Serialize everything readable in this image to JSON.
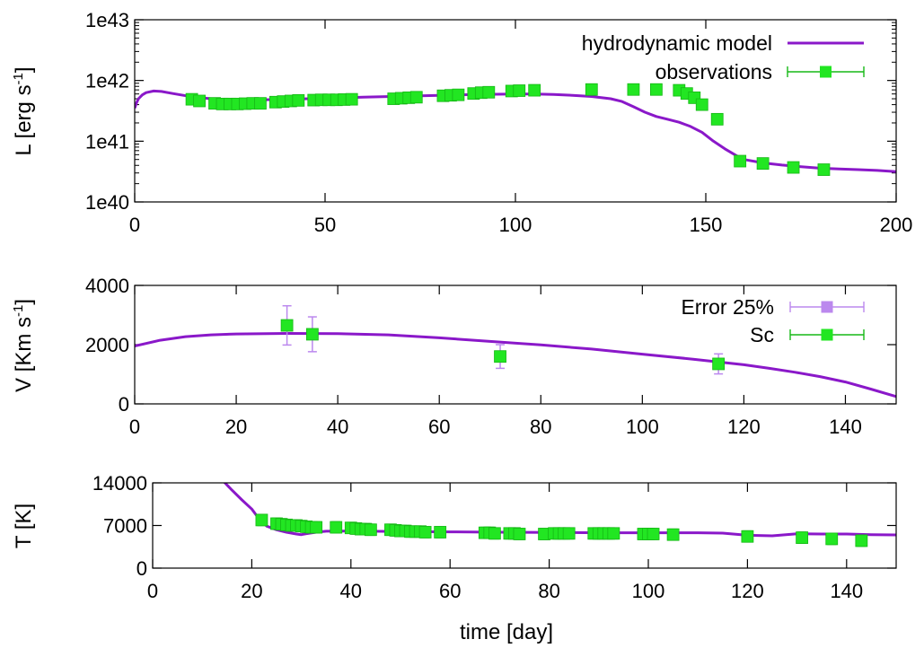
{
  "colors": {
    "model": "#8a18c9",
    "obs": "#22e622",
    "obs_edge": "#16b816",
    "err25": "#bb88ee"
  },
  "chart_data": [
    {
      "type": "line",
      "xlabel": "",
      "ylabel": "L [erg s",
      "ylabel_sup": "-1",
      "ylabel_close": "]",
      "xlim": [
        0,
        200
      ],
      "ylim": [
        1e+40,
        1e+43
      ],
      "yscale": "log",
      "xticks": [
        0,
        50,
        100,
        150,
        200
      ],
      "xtick_labels": [
        "0",
        "50",
        "100",
        "150",
        "200"
      ],
      "yticks": [
        1e+40,
        1e+41,
        1e+42,
        1e+43
      ],
      "ytick_labels": [
        "1e40",
        "1e41",
        "1e42",
        "1e43"
      ],
      "legend": "top-right",
      "series": [
        {
          "name": "hydrodynamic model",
          "style": "line",
          "x": [
            0,
            0.5,
            1,
            2,
            3,
            5,
            7,
            10,
            15,
            20,
            25,
            30,
            40,
            50,
            60,
            70,
            80,
            90,
            100,
            105,
            110,
            115,
            120,
            125,
            128,
            131,
            134,
            137,
            140,
            143,
            146,
            149,
            152,
            155,
            158,
            160,
            165,
            170,
            175,
            180,
            185,
            190,
            195,
            200
          ],
          "y": [
            3.5e+41,
            4.3e+41,
            5e+41,
            5.8e+41,
            6.3e+41,
            6.7e+41,
            6.6e+41,
            6.1e+41,
            5.4e+41,
            5e+41,
            4.8e+41,
            4.75e+41,
            4.9e+41,
            5.1e+41,
            5.3e+41,
            5.5e+41,
            5.7e+41,
            5.9e+41,
            6e+41,
            6e+41,
            5.9e+41,
            5.7e+41,
            5.45e+41,
            5e+41,
            4.5e+41,
            3.7e+41,
            3e+41,
            2.55e+41,
            2.3e+41,
            2.05e+41,
            1.75e+41,
            1.4e+41,
            1e+41,
            7.5e+40,
            5.8e+40,
            5e+40,
            4.4e+40,
            4.05e+40,
            3.8e+40,
            3.6e+40,
            3.5e+40,
            3.4e+40,
            3.3e+40,
            3.15e+40
          ]
        },
        {
          "name": "observations",
          "style": "points",
          "x": [
            15,
            17,
            21,
            23,
            25,
            27,
            29,
            31,
            33,
            37,
            39,
            41,
            43,
            47,
            49,
            51,
            53,
            55,
            57,
            68,
            70,
            72,
            74,
            81,
            83,
            85,
            89,
            91,
            93,
            99,
            101,
            105,
            120,
            131,
            137,
            143,
            145,
            147,
            149,
            153,
            159,
            165,
            173,
            181
          ],
          "y": [
            4.9e+41,
            4.6e+41,
            4.2e+41,
            4.1e+41,
            4.1e+41,
            4.1e+41,
            4.15e+41,
            4.2e+41,
            4.2e+41,
            4.4e+41,
            4.5e+41,
            4.6e+41,
            4.7e+41,
            4.75e+41,
            4.8e+41,
            4.8e+41,
            4.8e+41,
            4.85e+41,
            4.9e+41,
            5e+41,
            5.1e+41,
            5.2e+41,
            5.3e+41,
            5.6e+41,
            5.7e+41,
            5.8e+41,
            6.1e+41,
            6.3e+41,
            6.4e+41,
            6.7e+41,
            6.8e+41,
            6.9e+41,
            7.1e+41,
            7.1e+41,
            7.1e+41,
            6.9e+41,
            6.1e+41,
            5.2e+41,
            4e+41,
            2.3e+41,
            4.7e+40,
            4.3e+40,
            3.7e+40,
            3.4e+40
          ],
          "yerr": 0
        }
      ]
    },
    {
      "type": "line",
      "xlabel": "",
      "ylabel": "V [Km s",
      "ylabel_sup": "-1",
      "ylabel_close": "]",
      "xlim": [
        0,
        150
      ],
      "ylim": [
        0,
        4000
      ],
      "yscale": "linear",
      "xticks": [
        0,
        20,
        40,
        60,
        80,
        100,
        120,
        140
      ],
      "xtick_labels": [
        "0",
        "20",
        "40",
        "60",
        "80",
        "100",
        "120",
        "140"
      ],
      "yticks": [
        0,
        2000,
        4000
      ],
      "ytick_labels": [
        "0",
        "2000",
        "4000"
      ],
      "legend": "top-right",
      "series": [
        {
          "name": "",
          "style": "line",
          "x": [
            0,
            5,
            10,
            15,
            20,
            30,
            40,
            50,
            60,
            70,
            80,
            90,
            100,
            110,
            120,
            125,
            130,
            135,
            140,
            145,
            150
          ],
          "y": [
            1950,
            2150,
            2270,
            2330,
            2360,
            2380,
            2370,
            2330,
            2230,
            2110,
            1990,
            1850,
            1680,
            1510,
            1320,
            1200,
            1070,
            920,
            740,
            500,
            250
          ]
        },
        {
          "name": "Error 25%",
          "style": "errorbars",
          "x": [
            30,
            35,
            72,
            115
          ],
          "y": [
            2650,
            2350,
            1600,
            1350
          ],
          "yerr": [
            662,
            588,
            400,
            338
          ]
        },
        {
          "name": "Sc",
          "style": "points",
          "x": [
            30,
            35,
            72,
            115
          ],
          "y": [
            2650,
            2350,
            1600,
            1350
          ],
          "yerr": [
            130,
            120,
            90,
            90
          ]
        }
      ]
    },
    {
      "type": "line",
      "xlabel": "time [day]",
      "ylabel": "T [K]",
      "ylabel_sup": "",
      "ylabel_close": "",
      "xlim": [
        0,
        150
      ],
      "ylim": [
        0,
        14000
      ],
      "yscale": "linear",
      "xticks": [
        0,
        20,
        40,
        60,
        80,
        100,
        120,
        140
      ],
      "xtick_labels": [
        "0",
        "20",
        "40",
        "60",
        "80",
        "100",
        "120",
        "140"
      ],
      "yticks": [
        0,
        7000,
        14000
      ],
      "ytick_labels": [
        "0",
        "7000",
        "14000"
      ],
      "legend": "none",
      "series": [
        {
          "name": "",
          "style": "line",
          "x": [
            14,
            16,
            18,
            20,
            21,
            22,
            23,
            25,
            27,
            29,
            30,
            31,
            33,
            35,
            40,
            50,
            60,
            70,
            80,
            90,
            100,
            110,
            115,
            120,
            125,
            130,
            135,
            140,
            145,
            150
          ],
          "y": [
            14500,
            12800,
            11200,
            9700,
            8600,
            7700,
            6900,
            6300,
            5900,
            5600,
            5500,
            5650,
            5900,
            6050,
            6100,
            6000,
            5950,
            5900,
            5850,
            5800,
            5800,
            5800,
            5750,
            5400,
            5300,
            5650,
            5600,
            5600,
            5500,
            5450
          ]
        },
        {
          "name": "",
          "style": "points",
          "x": [
            22,
            25,
            26,
            27,
            28,
            29,
            30,
            31,
            32,
            33,
            37,
            40,
            41,
            42,
            43,
            44,
            48,
            49,
            50,
            51,
            52,
            53,
            54,
            55,
            58,
            67,
            68,
            69,
            72,
            73,
            74,
            79,
            81,
            82,
            83,
            84,
            89,
            90,
            91,
            92,
            93,
            99,
            100,
            101,
            105,
            120,
            131,
            137,
            143
          ],
          "y": [
            7900,
            7300,
            7200,
            7100,
            7000,
            7000,
            6900,
            6800,
            6700,
            6700,
            6700,
            6600,
            6500,
            6400,
            6400,
            6300,
            6300,
            6200,
            6100,
            6100,
            6000,
            6000,
            6000,
            5900,
            5900,
            5800,
            5800,
            5700,
            5700,
            5700,
            5600,
            5600,
            5700,
            5700,
            5700,
            5700,
            5700,
            5700,
            5700,
            5700,
            5700,
            5600,
            5600,
            5600,
            5500,
            5200,
            5000,
            4800,
            4500
          ],
          "yerr": 900
        }
      ]
    }
  ]
}
